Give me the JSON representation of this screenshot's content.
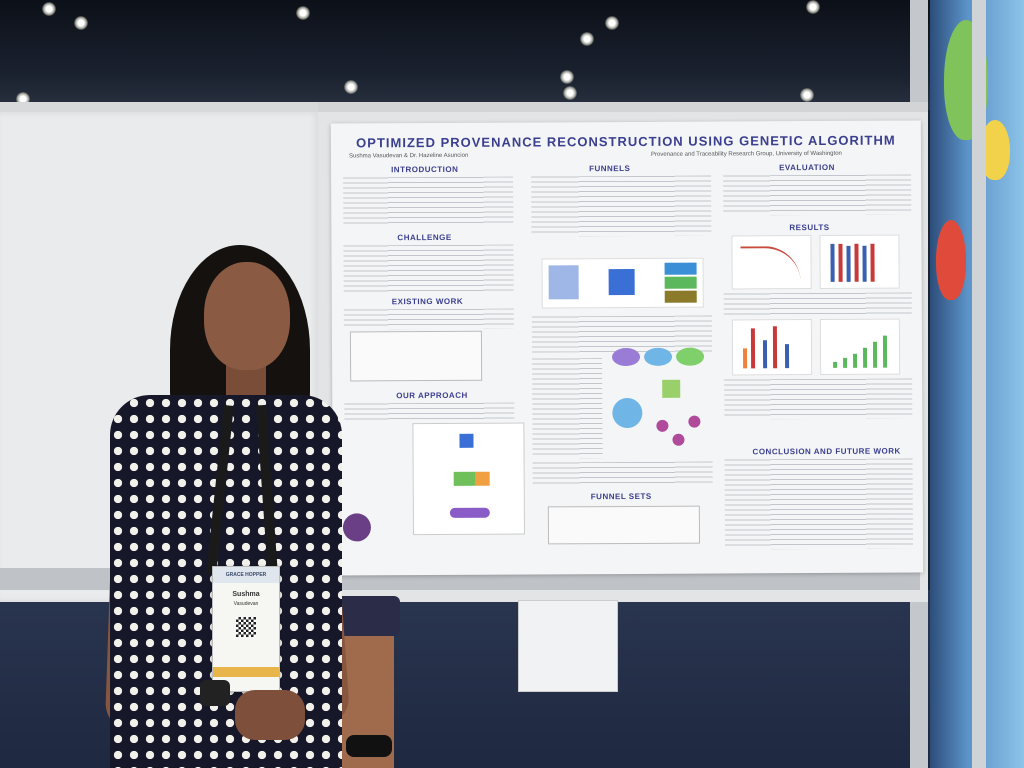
{
  "poster": {
    "title": "OPTIMIZED PROVENANCE RECONSTRUCTION USING GENETIC ALGORITHM",
    "authors": "Sushma Vasudevan & Dr. Hazeline Asuncion",
    "group": "Provenance and Traceability Research Group, University of Washington",
    "sections": {
      "introduction": "INTRODUCTION",
      "challenge": "CHALLENGE",
      "existing_work": "EXISTING WORK",
      "our_approach": "OUR APPROACH",
      "funnels": "FUNNELS",
      "funnel_sets": "FUNNEL SETS",
      "evaluation": "EVALUATION",
      "results": "RESULTS",
      "conclusion": "CONCLUSION AND FUTURE WORK"
    }
  },
  "badge": {
    "event": "GRACE HOPPER",
    "name": "Sushma",
    "surname": "Vasudevan"
  },
  "colors": {
    "poster_heading": "#3b3f8f",
    "dress": "#16182a",
    "booth_wall": "#5c93c9"
  }
}
